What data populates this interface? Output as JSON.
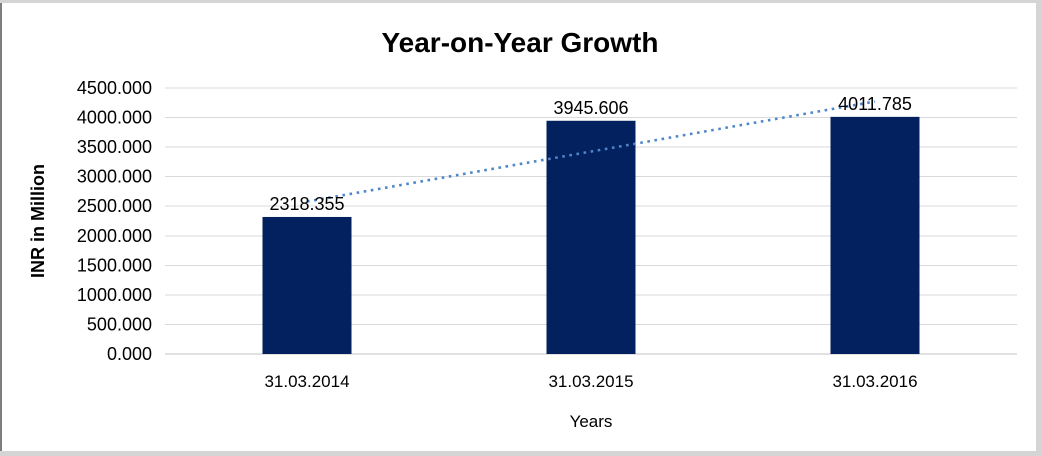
{
  "chart_data": {
    "type": "bar",
    "title": "Year-on-Year Growth",
    "xlabel": "Years",
    "ylabel": "INR in Million",
    "categories": [
      "31.03.2014",
      "31.03.2015",
      "31.03.2016"
    ],
    "values": [
      2318.355,
      3945.606,
      4011.785
    ],
    "value_labels": [
      "2318.355",
      "3945.606",
      "4011.785"
    ],
    "y_ticks": [
      "0.000",
      "500.000",
      "1000.000",
      "1500.000",
      "2000.000",
      "2500.000",
      "3000.000",
      "3500.000",
      "4000.000",
      "4500.000"
    ],
    "ylim": [
      0,
      4500
    ],
    "grid": true,
    "legend": "none",
    "trendline": {
      "type": "linear",
      "style": "dotted",
      "span": "first-to-last-category"
    },
    "colors": {
      "bar": "#02215E",
      "trendline": "#4E87C9",
      "gridline": "#D9D9D9",
      "axis_line": "#C3C3C3",
      "text": "#000000"
    }
  }
}
